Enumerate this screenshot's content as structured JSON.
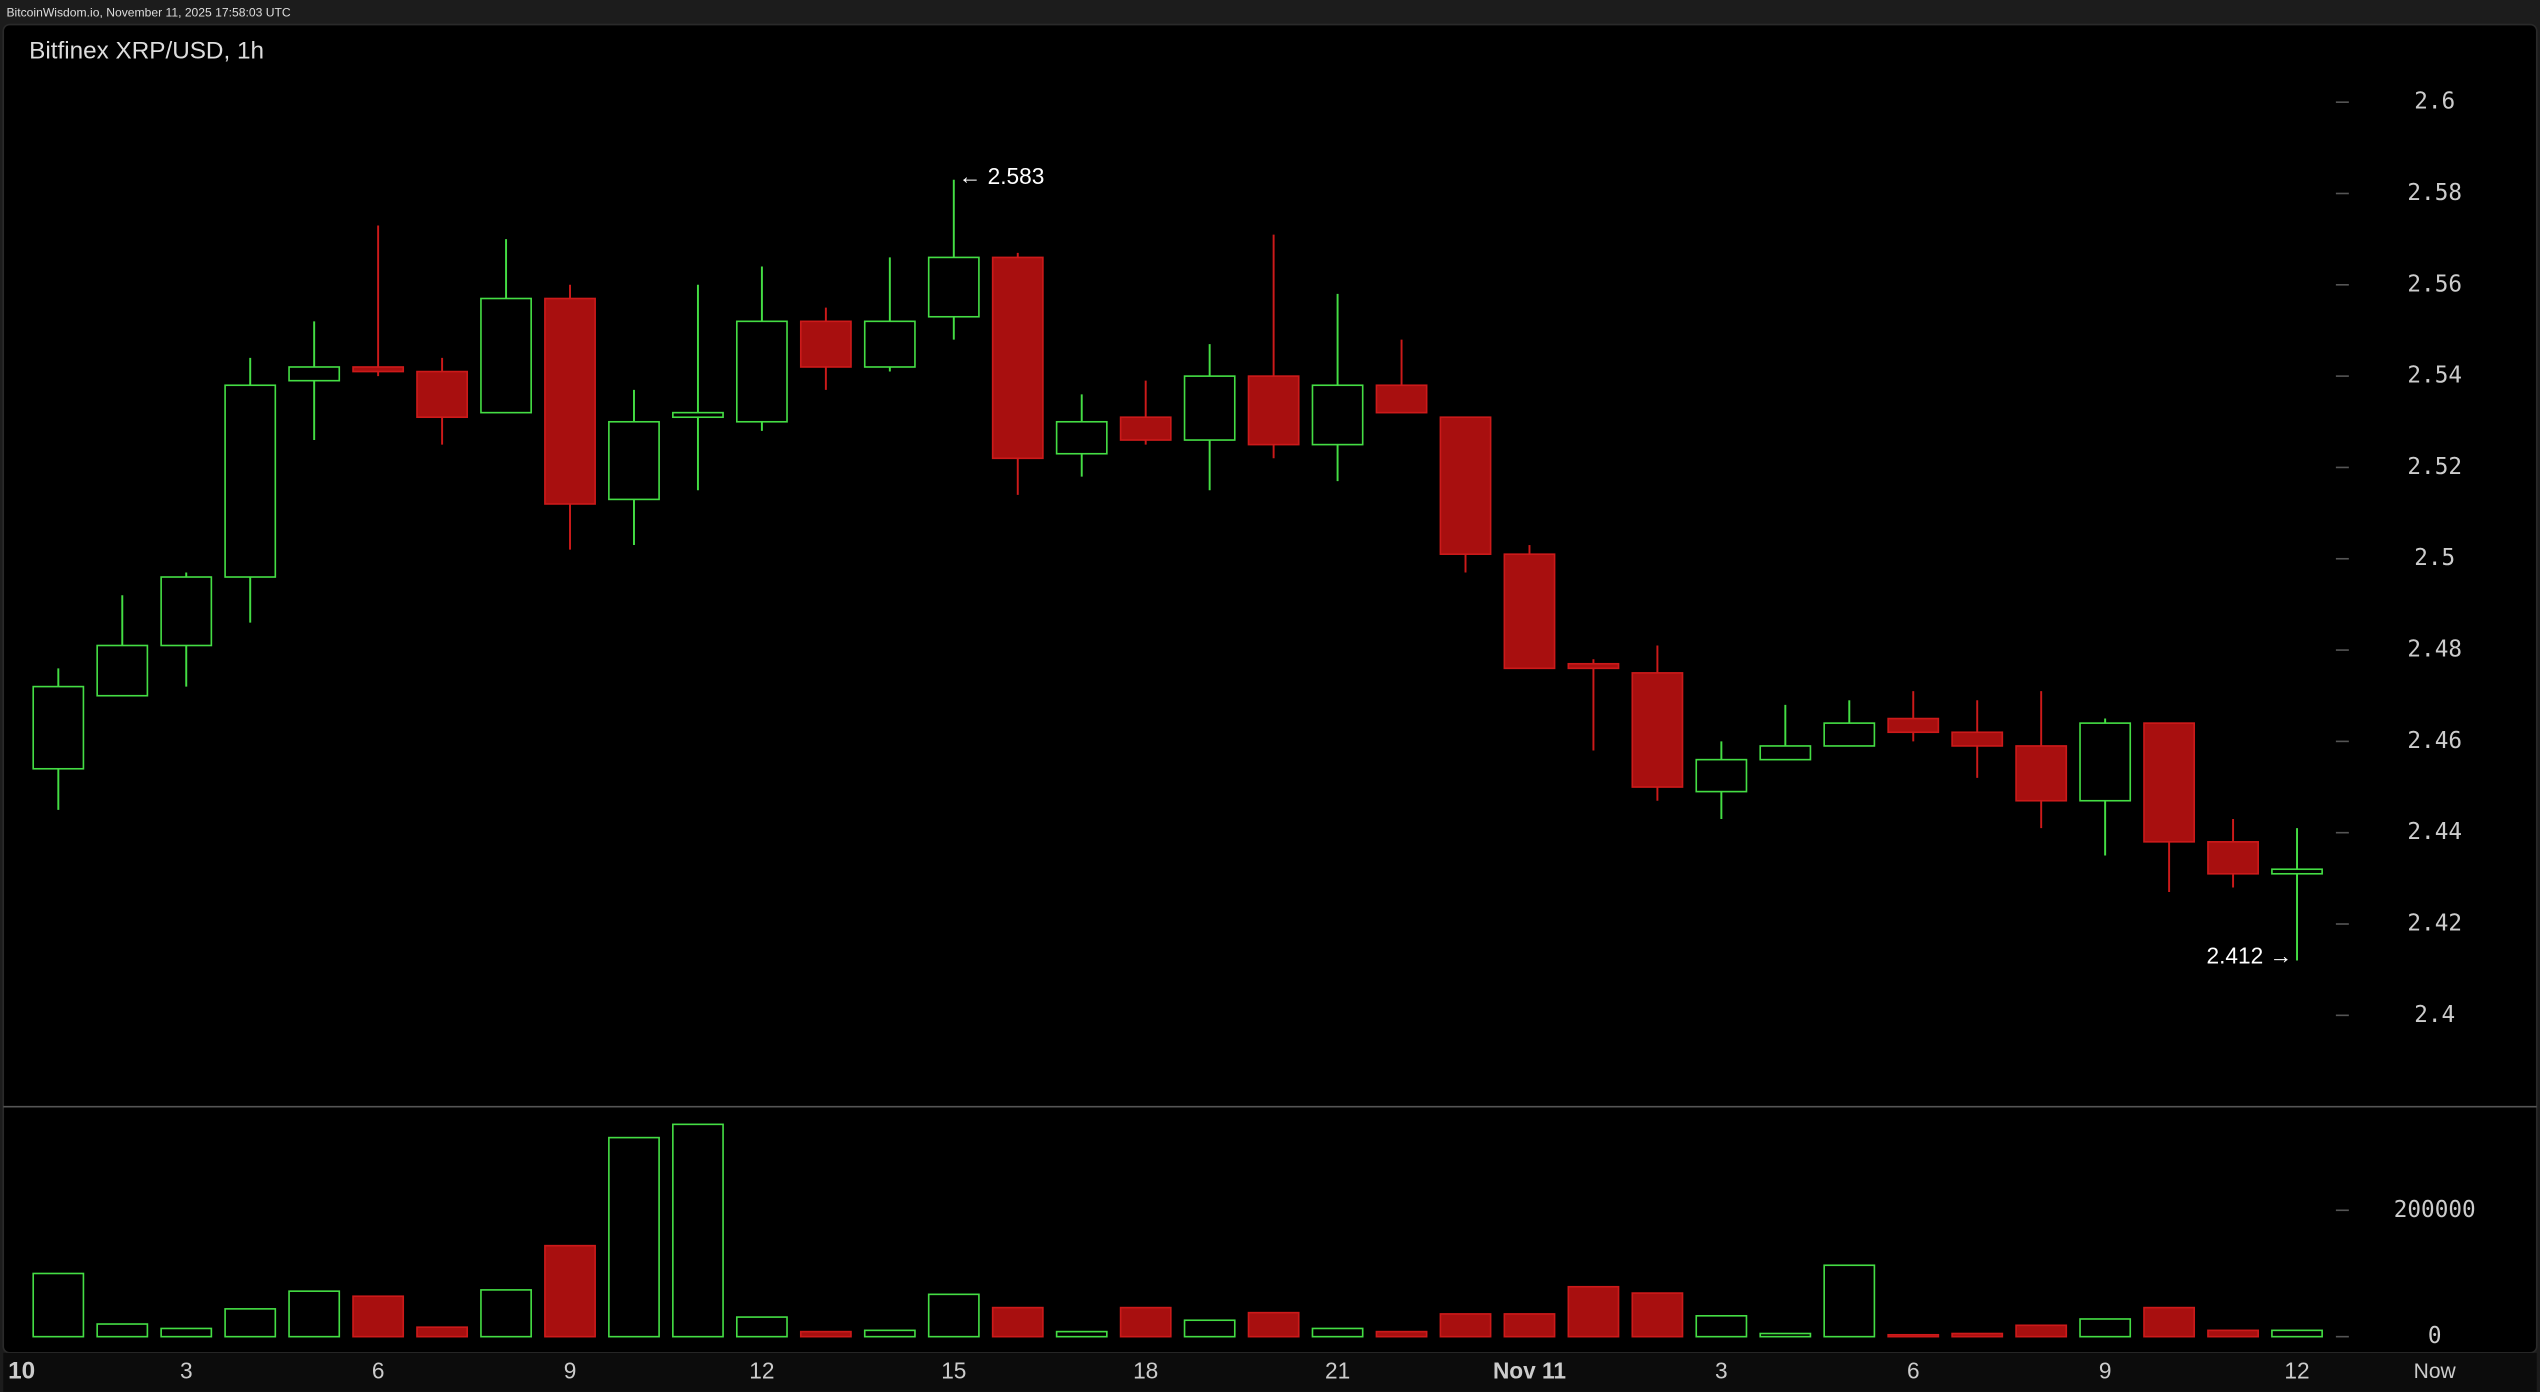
{
  "chart_data": {
    "type": "candlestick",
    "source": "BitcoinWisdom.io, November 11, 2025 17:58:03 UTC",
    "title": "Bitfinex XRP/USD, 1h",
    "categories": [
      null,
      null,
      "3",
      null,
      null,
      "6",
      null,
      null,
      "9",
      null,
      null,
      "12",
      null,
      null,
      "15",
      null,
      null,
      "18",
      null,
      null,
      "21",
      null,
      null,
      "Nov 11",
      null,
      null,
      "3",
      null,
      null,
      "6",
      null,
      null,
      "9",
      null,
      null,
      "12"
    ],
    "x_start_label": "10",
    "x_end_label": "Now",
    "open": [
      2.454,
      2.47,
      2.481,
      2.496,
      2.539,
      2.542,
      2.541,
      2.532,
      2.557,
      2.513,
      2.531,
      2.53,
      2.552,
      2.542,
      2.553,
      2.566,
      2.523,
      2.531,
      2.526,
      2.54,
      2.525,
      2.538,
      2.531,
      2.501,
      2.477,
      2.475,
      2.449,
      2.456,
      2.459,
      2.465,
      2.462,
      2.459,
      2.447,
      2.464,
      2.438,
      2.431
    ],
    "high": [
      2.476,
      2.492,
      2.497,
      2.544,
      2.552,
      2.573,
      2.544,
      2.57,
      2.56,
      2.537,
      2.56,
      2.564,
      2.555,
      2.566,
      2.583,
      2.567,
      2.536,
      2.539,
      2.547,
      2.571,
      2.558,
      2.548,
      2.531,
      2.503,
      2.478,
      2.481,
      2.46,
      2.468,
      2.469,
      2.471,
      2.469,
      2.471,
      2.465,
      2.464,
      2.443,
      2.441
    ],
    "low": [
      2.445,
      2.47,
      2.472,
      2.486,
      2.526,
      2.54,
      2.525,
      2.532,
      2.502,
      2.503,
      2.515,
      2.528,
      2.537,
      2.541,
      2.548,
      2.514,
      2.518,
      2.525,
      2.515,
      2.522,
      2.517,
      2.532,
      2.497,
      2.476,
      2.458,
      2.447,
      2.443,
      2.456,
      2.459,
      2.46,
      2.452,
      2.441,
      2.435,
      2.427,
      2.428,
      2.412
    ],
    "close": [
      2.472,
      2.481,
      2.496,
      2.538,
      2.542,
      2.541,
      2.531,
      2.557,
      2.512,
      2.53,
      2.532,
      2.552,
      2.542,
      2.552,
      2.566,
      2.522,
      2.53,
      2.526,
      2.54,
      2.525,
      2.538,
      2.532,
      2.501,
      2.476,
      2.476,
      2.45,
      2.456,
      2.459,
      2.464,
      2.462,
      2.459,
      2.447,
      2.464,
      2.438,
      2.431,
      2.432
    ],
    "volume": [
      100000,
      20000,
      13000,
      44000,
      72000,
      64000,
      15000,
      74000,
      144000,
      315000,
      336000,
      31000,
      8000,
      10000,
      67000,
      46000,
      8000,
      46000,
      26000,
      38000,
      13000,
      8000,
      36000,
      36000,
      79000,
      69000,
      33000,
      5000,
      113000,
      3000,
      5000,
      18000,
      28000,
      46000,
      10000,
      10000
    ],
    "annotations": [
      "← 2.583",
      "2.412 →"
    ],
    "ylim": [
      2.38,
      2.617
    ],
    "yticks": [
      2.4,
      2.42,
      2.44,
      2.46,
      2.48,
      2.5,
      2.52,
      2.54,
      2.56,
      2.58,
      2.6
    ],
    "volume_ylim": [
      0,
      364000
    ],
    "volume_ticks": [
      0,
      200000
    ],
    "up_color": "#44dd44",
    "down_color": "#a80f0f"
  }
}
